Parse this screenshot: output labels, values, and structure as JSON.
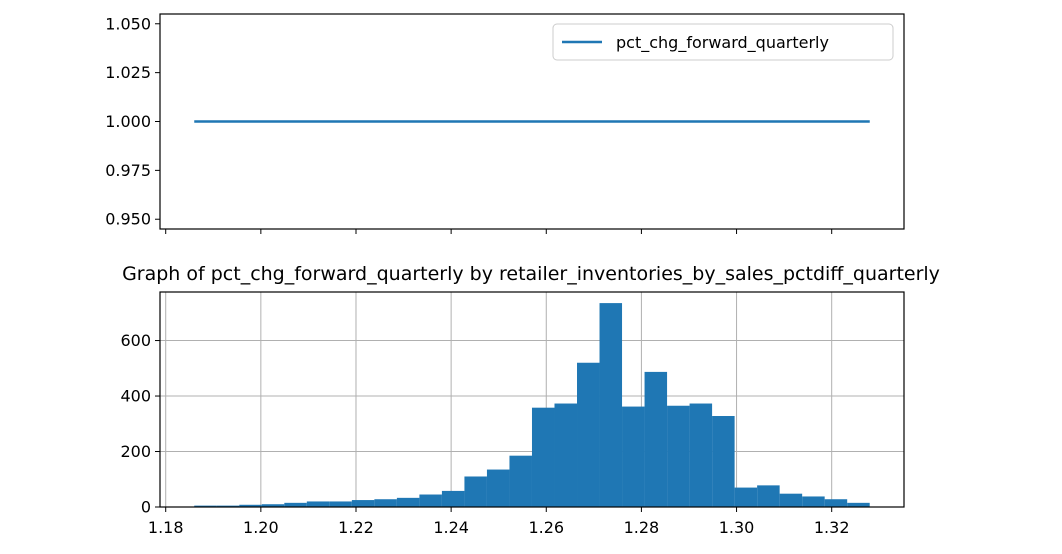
{
  "colors": {
    "line": "#1f77b4",
    "bar": "#1f77b4",
    "grid": "#b0b0b0",
    "axis": "#000000"
  },
  "chart_data": [
    {
      "type": "line",
      "title": "",
      "xlabel": "",
      "ylabel": "",
      "x_range": [
        1.186,
        1.328
      ],
      "xlim": [
        1.1788,
        1.3352
      ],
      "ylim": [
        0.945,
        1.055
      ],
      "yticks": [
        0.95,
        0.975,
        1.0,
        1.025,
        1.05
      ],
      "ytick_labels": [
        "0.950",
        "0.975",
        "1.000",
        "1.025",
        "1.050"
      ],
      "xticks": [
        1.18,
        1.2,
        1.22,
        1.24,
        1.26,
        1.28,
        1.3,
        1.32
      ],
      "show_xtick_labels": false,
      "grid": false,
      "legend": {
        "placement": "upper right",
        "entries": [
          "pct_chg_forward_quarterly"
        ]
      },
      "series": [
        {
          "name": "pct_chg_forward_quarterly",
          "x": [
            1.186,
            1.328
          ],
          "y": [
            1.0,
            1.0
          ]
        }
      ]
    },
    {
      "type": "bar",
      "title": "Graph of pct_chg_forward_quarterly by retailer_inventories_by_sales_pctdiff_quarterly",
      "xlabel": "",
      "ylabel": "",
      "xlim": [
        1.1788,
        1.3352
      ],
      "ylim": [
        0,
        775
      ],
      "xticks": [
        1.18,
        1.2,
        1.22,
        1.24,
        1.26,
        1.28,
        1.3,
        1.32
      ],
      "xtick_labels": [
        "1.18",
        "1.20",
        "1.22",
        "1.24",
        "1.26",
        "1.28",
        "1.30",
        "1.32"
      ],
      "yticks": [
        0,
        200,
        400,
        600
      ],
      "ytick_labels": [
        "0",
        "200",
        "400",
        "600"
      ],
      "grid": true,
      "bin_start": 1.186,
      "bin_width": 0.004733,
      "values": [
        5,
        5,
        8,
        10,
        15,
        20,
        20,
        25,
        28,
        33,
        45,
        58,
        110,
        135,
        185,
        358,
        373,
        520,
        735,
        362,
        487,
        365,
        373,
        328,
        70,
        78,
        48,
        38,
        28,
        15
      ]
    }
  ]
}
